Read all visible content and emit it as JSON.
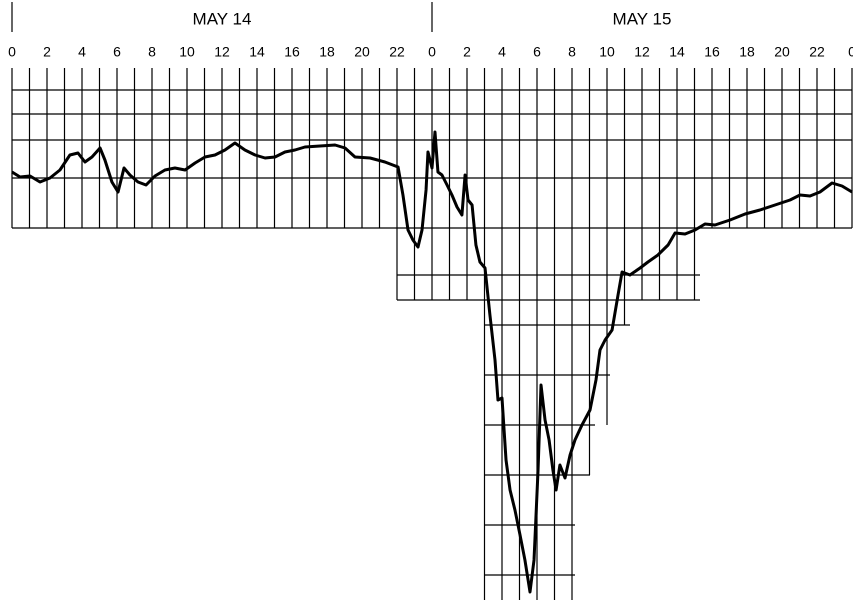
{
  "chart_data": {
    "type": "line",
    "annotations": [
      "MAY 14",
      "MAY 15"
    ],
    "xlim": [
      0,
      48
    ],
    "xticks": [
      0,
      2,
      4,
      6,
      8,
      10,
      12,
      14,
      16,
      18,
      20,
      22,
      {
        "value": 24,
        "label": "0"
      },
      {
        "value": 26,
        "label": "2"
      },
      {
        "value": 28,
        "label": "4"
      },
      {
        "value": 30,
        "label": "6"
      },
      {
        "value": 32,
        "label": "8"
      },
      {
        "value": 34,
        "label": "10"
      },
      {
        "value": 36,
        "label": "12"
      },
      {
        "value": 38,
        "label": "14"
      },
      {
        "value": 40,
        "label": "16"
      },
      {
        "value": 42,
        "label": "18"
      },
      {
        "value": 44,
        "label": "20"
      },
      {
        "value": 46,
        "label": "22"
      },
      {
        "value": 48,
        "label": "0"
      }
    ],
    "ylim": [
      -16.8,
      4
    ],
    "grid": true,
    "series": [
      {
        "color": "#000000",
        "x": [
          0,
          0.46,
          1.03,
          1.6,
          2.17,
          2.74,
          3.31,
          3.77,
          4.17,
          4.57,
          5.03,
          5.31,
          5.71,
          6.06,
          6.4,
          6.74,
          7.2,
          7.66,
          8.17,
          8.74,
          9.31,
          9.89,
          10.46,
          11.03,
          11.6,
          12.17,
          12.74,
          13.31,
          13.89,
          14.46,
          15.03,
          15.6,
          16.17,
          16.74,
          17.6,
          18.46,
          19.03,
          19.6,
          20.46,
          21.31,
          22.06,
          22.34,
          22.63,
          22.91,
          23.2,
          23.43,
          23.66,
          23.77,
          24,
          24.17,
          24.34,
          24.57,
          24.86,
          25.14,
          25.43,
          25.71,
          25.89,
          26.06,
          26.29,
          26.51,
          26.74,
          27.03,
          27.31,
          27.6,
          27.77,
          28,
          28.23,
          28.46,
          28.74,
          29.03,
          29.31,
          29.6,
          29.83,
          30.06,
          30.23,
          30.46,
          30.69,
          30.91,
          31.09,
          31.31,
          31.6,
          31.89,
          32.17,
          32.57,
          33.03,
          33.37,
          33.6,
          33.89,
          34.29,
          34.63,
          34.86,
          35.31,
          35.89,
          36.34,
          36.91,
          37.49,
          37.89,
          38.46,
          39.03,
          39.6,
          40.17,
          41.03,
          41.89,
          42.74,
          43.6,
          44.46,
          45.03,
          45.6,
          46.17,
          46.86,
          47.43,
          48
        ],
        "values": [
          0.24,
          0.04,
          0.08,
          -0.16,
          0,
          0.32,
          0.92,
          1.0,
          0.64,
          0.84,
          1.2,
          0.72,
          -0.16,
          -0.56,
          0.4,
          0.12,
          -0.16,
          -0.28,
          0.08,
          0.32,
          0.4,
          0.32,
          0.6,
          0.84,
          0.92,
          1.12,
          1.4,
          1.12,
          0.92,
          0.8,
          0.84,
          1.04,
          1.12,
          1.24,
          1.28,
          1.32,
          1.2,
          0.84,
          0.8,
          0.64,
          0.44,
          -0.68,
          -2.08,
          -2.48,
          -2.76,
          -2.08,
          -0.48,
          1.04,
          0.4,
          1.84,
          0.24,
          0.12,
          -0.28,
          -0.68,
          -1.16,
          -1.48,
          0.12,
          -0.88,
          -1.08,
          -2.68,
          -3.36,
          -3.6,
          -5.48,
          -7.28,
          -8.88,
          -8.8,
          -11.28,
          -12.48,
          -13.28,
          -14.28,
          -15.28,
          -16.56,
          -15.28,
          -11.68,
          -8.28,
          -9.68,
          -10.48,
          -11.68,
          -12.48,
          -11.48,
          -12.0,
          -11.08,
          -10.48,
          -9.88,
          -9.28,
          -8.08,
          -6.88,
          -6.48,
          -6.08,
          -4.68,
          -3.76,
          -3.88,
          -3.6,
          -3.36,
          -3.08,
          -2.68,
          -2.2,
          -2.24,
          -2.08,
          -1.84,
          -1.88,
          -1.68,
          -1.44,
          -1.28,
          -1.08,
          -0.88,
          -0.68,
          -0.72,
          -0.56,
          -0.2,
          -0.32,
          -0.56
        ]
      }
    ]
  }
}
